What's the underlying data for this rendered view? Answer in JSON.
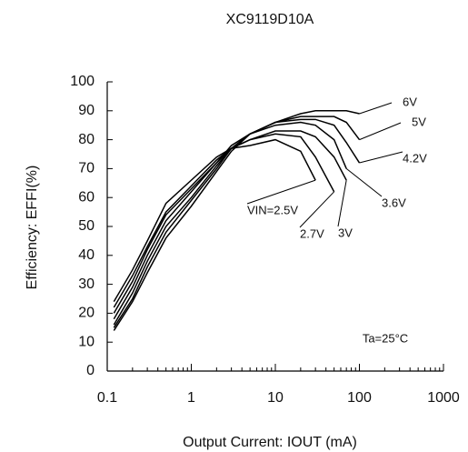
{
  "chart_data": {
    "type": "line",
    "title": "XC9119D10A",
    "x_label": "Output Current: IOUT (mA)",
    "y_label": "Efficiency: EFFI(%)",
    "annotation": "Ta=25°C",
    "log_x": true,
    "xlim": [
      0.1,
      1000
    ],
    "xticks": [
      0.1,
      1,
      10,
      100,
      1000
    ],
    "ylim": [
      0,
      100
    ],
    "yticks": [
      0,
      10,
      20,
      30,
      40,
      50,
      60,
      70,
      80,
      90,
      100
    ],
    "x": [
      0.12,
      0.2,
      0.3,
      0.5,
      1,
      2,
      3,
      5,
      10,
      20,
      30,
      50,
      70,
      100
    ],
    "series": [
      {
        "name": "VIN=2.5V",
        "color": "#000000",
        "values": [
          24,
          35,
          45,
          58,
          66,
          74,
          77,
          78,
          80,
          76,
          66,
          null,
          null,
          null
        ]
      },
      {
        "name": "2.7V",
        "color": "#000000",
        "values": [
          22,
          33,
          43,
          55,
          64,
          73,
          77,
          80,
          82,
          81,
          74,
          62,
          null,
          null
        ]
      },
      {
        "name": "3V",
        "color": "#000000",
        "values": [
          20,
          31,
          42,
          54,
          63,
          72,
          77,
          80,
          83,
          83,
          81,
          74,
          66,
          null
        ]
      },
      {
        "name": "3.6V",
        "color": "#000000",
        "values": [
          18,
          29,
          40,
          52,
          62,
          72,
          78,
          82,
          85,
          86,
          85,
          80,
          70,
          null
        ]
      },
      {
        "name": "4.2V",
        "color": "#000000",
        "values": [
          16,
          27,
          38,
          50,
          60,
          71,
          77,
          82,
          86,
          87,
          87,
          85,
          79,
          72
        ]
      },
      {
        "name": "5V",
        "color": "#000000",
        "values": [
          15,
          25,
          36,
          48,
          59,
          70,
          77,
          82,
          86,
          88,
          88,
          88,
          86,
          80
        ]
      },
      {
        "name": "6V",
        "color": "#000000",
        "values": [
          14,
          24,
          34,
          46,
          57,
          69,
          76,
          82,
          86,
          89,
          90,
          90,
          90,
          89
        ]
      }
    ]
  }
}
